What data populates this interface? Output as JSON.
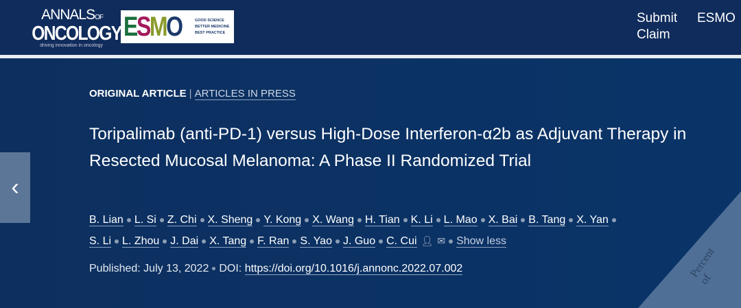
{
  "header": {
    "logo_annals": {
      "line1": "ANNALS",
      "of": "OF",
      "line2": "ONCOLOGY",
      "tagline": "driving innovation in oncology"
    },
    "logo_esmo": {
      "letters": [
        "E",
        "S",
        "M",
        "O"
      ],
      "colors": [
        "#1a6e3c",
        "#a3195b",
        "#8a9a2a",
        "#1c3a6b"
      ],
      "tagline": [
        "GOOD SCIENCE",
        "BETTER MEDICINE",
        "BEST PRACTICE"
      ]
    },
    "nav": [
      {
        "label": "Submit Claim"
      },
      {
        "label": "ESMO"
      }
    ]
  },
  "article": {
    "category": "ORIGINAL ARTICLE",
    "section": "ARTICLES IN PRESS",
    "title": "Toripalimab (anti-PD-1) versus High-Dose Interferon-α2b as Adjuvant Therapy in Resected Mucosal Melanoma: A Phase II Randomized Trial",
    "authors": [
      "B. Lian",
      "L. Si",
      "Z. Chi",
      "X. Sheng",
      "Y. Kong",
      "X. Wang",
      "H. Tian",
      "K. Li",
      "L. Mao",
      "X. Bai",
      "B. Tang",
      "X. Yan",
      "S. Li",
      "L. Zhou",
      "J. Dai",
      "X. Tang",
      "F. Ran",
      "S. Yao",
      "J. Guo",
      "C. Cui"
    ],
    "show_less": "Show less",
    "published_label": "Published:",
    "published_date": "July 13, 2022",
    "doi_label": "DOI:",
    "doi": "https://doi.org/10.1016/j.annonc.2022.07.002"
  },
  "figure_text": "Percent of"
}
